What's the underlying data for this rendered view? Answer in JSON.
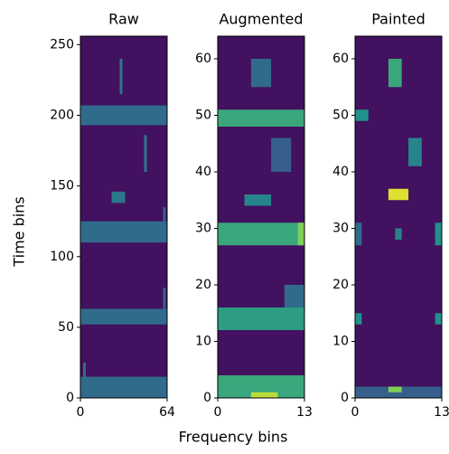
{
  "chart_data": {
    "type": "heatmap",
    "xlabel": "Frequency bins",
    "ylabel": "Time bins",
    "colormap": "viridis",
    "vlim": [
      0,
      1
    ],
    "panels": [
      {
        "title": "Raw",
        "xlim": [
          0,
          64
        ],
        "ylim": [
          0,
          256
        ],
        "xticks": [
          0,
          64
        ],
        "yticks": [
          0,
          50,
          100,
          150,
          200,
          250
        ],
        "background": 0.05,
        "cells": [
          {
            "x": [
              0,
              64
            ],
            "y": [
              0,
              15
            ],
            "value": 0.35
          },
          {
            "x": [
              2,
              4
            ],
            "y": [
              15,
              25
            ],
            "value": 0.35
          },
          {
            "x": [
              0,
              64
            ],
            "y": [
              52,
              63
            ],
            "value": 0.35
          },
          {
            "x": [
              61,
              63
            ],
            "y": [
              63,
              78
            ],
            "value": 0.3
          },
          {
            "x": [
              0,
              64
            ],
            "y": [
              110,
              125
            ],
            "value": 0.35
          },
          {
            "x": [
              61,
              63
            ],
            "y": [
              125,
              135
            ],
            "value": 0.3
          },
          {
            "x": [
              23,
              33
            ],
            "y": [
              138,
              146
            ],
            "value": 0.4
          },
          {
            "x": [
              47,
              49
            ],
            "y": [
              160,
              186
            ],
            "value": 0.4
          },
          {
            "x": [
              0,
              64
            ],
            "y": [
              193,
              207
            ],
            "value": 0.35
          },
          {
            "x": [
              29,
              31
            ],
            "y": [
              215,
              240
            ],
            "value": 0.4
          }
        ]
      },
      {
        "title": "Augmented",
        "xlim": [
          0,
          13
        ],
        "ylim": [
          0,
          64
        ],
        "xticks": [
          0,
          13
        ],
        "yticks": [
          0,
          10,
          20,
          30,
          40,
          50,
          60
        ],
        "background": 0.05,
        "cells": [
          {
            "x": [
              0,
              13
            ],
            "y": [
              0,
              4
            ],
            "value": 0.6
          },
          {
            "x": [
              5,
              9
            ],
            "y": [
              0,
              1
            ],
            "value": 0.9
          },
          {
            "x": [
              0,
              13
            ],
            "y": [
              12,
              16
            ],
            "value": 0.55
          },
          {
            "x": [
              10,
              13
            ],
            "y": [
              16,
              20
            ],
            "value": 0.35
          },
          {
            "x": [
              0,
              13
            ],
            "y": [
              27,
              31
            ],
            "value": 0.6
          },
          {
            "x": [
              12,
              13
            ],
            "y": [
              27,
              31
            ],
            "value": 0.8
          },
          {
            "x": [
              4,
              8
            ],
            "y": [
              34,
              36
            ],
            "value": 0.45
          },
          {
            "x": [
              8,
              11
            ],
            "y": [
              40,
              46
            ],
            "value": 0.3
          },
          {
            "x": [
              0,
              13
            ],
            "y": [
              48,
              51
            ],
            "value": 0.6
          },
          {
            "x": [
              5,
              8
            ],
            "y": [
              55,
              60
            ],
            "value": 0.35
          }
        ]
      },
      {
        "title": "Painted",
        "xlim": [
          0,
          13
        ],
        "ylim": [
          0,
          64
        ],
        "xticks": [
          0,
          13
        ],
        "yticks": [
          0,
          10,
          20,
          30,
          40,
          50,
          60
        ],
        "background": 0.05,
        "cells": [
          {
            "x": [
              0,
              13
            ],
            "y": [
              0,
              2
            ],
            "value": 0.3
          },
          {
            "x": [
              5,
              7
            ],
            "y": [
              1,
              2
            ],
            "value": 0.8
          },
          {
            "x": [
              0,
              1
            ],
            "y": [
              13,
              15
            ],
            "value": 0.5
          },
          {
            "x": [
              12,
              13
            ],
            "y": [
              13,
              15
            ],
            "value": 0.5
          },
          {
            "x": [
              0,
              1
            ],
            "y": [
              27,
              31
            ],
            "value": 0.35
          },
          {
            "x": [
              6,
              7
            ],
            "y": [
              28,
              30
            ],
            "value": 0.45
          },
          {
            "x": [
              12,
              13
            ],
            "y": [
              27,
              31
            ],
            "value": 0.5
          },
          {
            "x": [
              5,
              8
            ],
            "y": [
              35,
              37
            ],
            "value": 0.95
          },
          {
            "x": [
              8,
              10
            ],
            "y": [
              41,
              46
            ],
            "value": 0.45
          },
          {
            "x": [
              0,
              2
            ],
            "y": [
              49,
              51
            ],
            "value": 0.5
          },
          {
            "x": [
              5,
              7
            ],
            "y": [
              55,
              60
            ],
            "value": 0.6
          }
        ]
      }
    ]
  }
}
